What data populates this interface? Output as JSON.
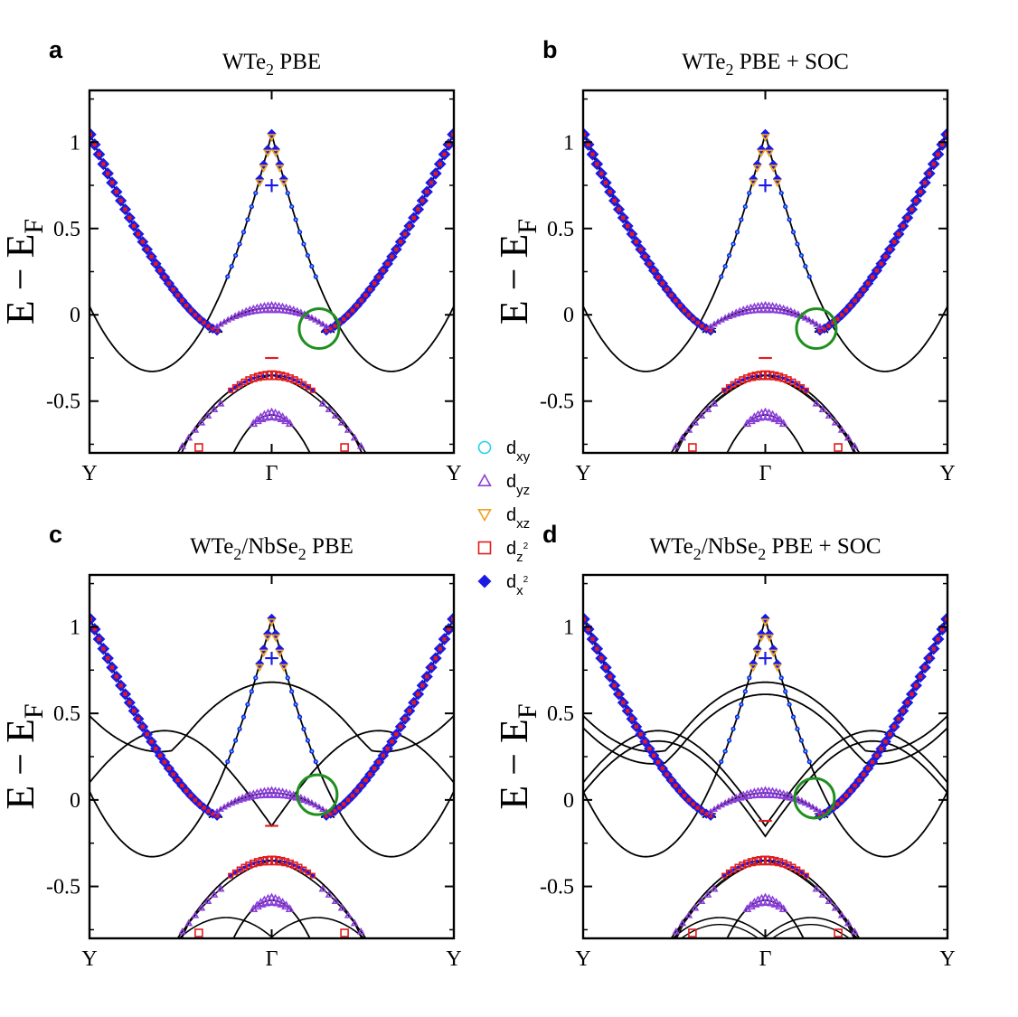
{
  "figure_type": "band structure",
  "panel_letters": [
    "a",
    "b",
    "c",
    "d"
  ],
  "legend": [
    {
      "label": "d",
      "sub": "xy",
      "sup": "",
      "marker": "circle",
      "color": "#22d3ee"
    },
    {
      "label": "d",
      "sub": "yz",
      "sup": "",
      "marker": "triangle-up",
      "color": "#8b3fd9"
    },
    {
      "label": "d",
      "sub": "xz",
      "sup": "",
      "marker": "triangle-down",
      "color": "#f0a020"
    },
    {
      "label": "d",
      "sub": "z",
      "sup": "2",
      "marker": "square",
      "color": "#e41a1c"
    },
    {
      "label": "d",
      "sub": "x",
      "sup": "2",
      "marker": "diamond",
      "color": "#1a1ae6"
    }
  ],
  "colors": {
    "band": "#000000",
    "plus_marker": "#1a1ae6",
    "minus_marker": "#e41a1c",
    "circle_highlight": "#1f8f1f"
  },
  "chart_data": [
    {
      "type": "line",
      "letter": "a",
      "title_main": "WTe",
      "title_sub": "2",
      "title_rest": "  PBE",
      "ylabel_main": "E − E",
      "ylabel_sub": "F",
      "ylim": [
        -0.8,
        1.3
      ],
      "yticks": [
        -0.5,
        0,
        0.5,
        1
      ],
      "ytick_labels": [
        "-0.5",
        "0",
        "0.5",
        "1"
      ],
      "xlim": [
        -1,
        1
      ],
      "xtick_positions": [
        -1,
        0,
        1
      ],
      "xtick_labels": [
        "Y",
        "Γ",
        "Y"
      ],
      "plus_label": "+",
      "minus_label": "−",
      "plus_pos": [
        0,
        0.75
      ],
      "minus_pos": [
        0,
        -0.25
      ],
      "highlight_circle": {
        "x": 0.26,
        "y": -0.08
      },
      "extra_bands": false,
      "soc": false
    },
    {
      "type": "line",
      "letter": "b",
      "title_main": "WTe",
      "title_sub": "2",
      "title_rest": "  PBE + SOC",
      "ylabel_main": "E − E",
      "ylabel_sub": "F",
      "ylim": [
        -0.8,
        1.3
      ],
      "yticks": [
        -0.5,
        0,
        0.5,
        1
      ],
      "ytick_labels": [
        "-0.5",
        "0",
        "0.5",
        "1"
      ],
      "xlim": [
        -1,
        1
      ],
      "xtick_positions": [
        -1,
        0,
        1
      ],
      "xtick_labels": [
        "Y",
        "Γ",
        "Y"
      ],
      "plus_label": "+",
      "minus_label": "−",
      "plus_pos": [
        0,
        0.75
      ],
      "minus_pos": [
        0,
        -0.25
      ],
      "highlight_circle": {
        "x": 0.28,
        "y": -0.08
      },
      "extra_bands": false,
      "soc": true
    },
    {
      "type": "line",
      "letter": "c",
      "title_main": "WTe",
      "title_sub": "2",
      "title_mid": "/NbSe",
      "title_sub2": "2",
      "title_rest": "  PBE",
      "ylabel_main": "E − E",
      "ylabel_sub": "F",
      "ylim": [
        -0.8,
        1.3
      ],
      "yticks": [
        -0.5,
        0,
        0.5,
        1
      ],
      "ytick_labels": [
        "-0.5",
        "0",
        "0.5",
        "1"
      ],
      "xlim": [
        -1,
        1
      ],
      "xtick_positions": [
        -1,
        0,
        1
      ],
      "xtick_labels": [
        "Y",
        "Γ",
        "Y"
      ],
      "plus_label": "+",
      "minus_label": "−",
      "plus_pos": [
        0,
        0.82
      ],
      "minus_pos": [
        0,
        -0.15
      ],
      "highlight_circle": {
        "x": 0.25,
        "y": 0.03
      },
      "extra_bands": true,
      "soc": false
    },
    {
      "type": "line",
      "letter": "d",
      "title_main": "WTe",
      "title_sub": "2",
      "title_mid": "/NbSe",
      "title_sub2": "2",
      "title_rest": "  PBE + SOC",
      "ylabel_main": "E − E",
      "ylabel_sub": "F",
      "ylim": [
        -0.8,
        1.3
      ],
      "yticks": [
        -0.5,
        0,
        0.5,
        1
      ],
      "ytick_labels": [
        "-0.5",
        "0",
        "0.5",
        "1"
      ],
      "xlim": [
        -1,
        1
      ],
      "xtick_positions": [
        -1,
        0,
        1
      ],
      "xtick_labels": [
        "Y",
        "Γ",
        "Y"
      ],
      "plus_label": "+",
      "minus_label": "−",
      "plus_pos": [
        0,
        0.82
      ],
      "minus_pos": [
        0,
        -0.12
      ],
      "highlight_circle": {
        "x": 0.27,
        "y": 0.01
      },
      "extra_bands": true,
      "soc": true
    }
  ]
}
